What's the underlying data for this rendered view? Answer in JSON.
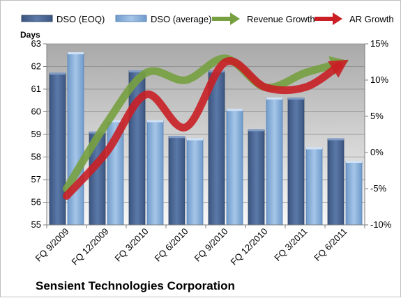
{
  "chart_data": {
    "type": "bar",
    "title": "Sensient Technologies Corporation",
    "ylabel": "Days",
    "categories": [
      "FQ 9/2009",
      "FQ 12/2009",
      "FQ 3/2010",
      "FQ 6/2010",
      "FQ 9/2010",
      "FQ 12/2010",
      "FQ 3/2011",
      "FQ 6/2011"
    ],
    "ylim": [
      55,
      63
    ],
    "yticks": [
      "55",
      "56",
      "57",
      "58",
      "59",
      "60",
      "61",
      "62",
      "63"
    ],
    "y2lim": [
      -10,
      15
    ],
    "y2ticks": [
      "-10%",
      "-5%",
      "0%",
      "5%",
      "10%",
      "15%"
    ],
    "series": [
      {
        "name": "DSO (EOQ)",
        "kind": "bar",
        "axis": "left",
        "color": "#4a6591",
        "values": [
          61.7,
          59.1,
          61.8,
          58.9,
          61.8,
          59.2,
          60.6,
          58.8
        ]
      },
      {
        "name": "DSO (average)",
        "kind": "bar",
        "axis": "left",
        "color": "#8cb2dc",
        "values": [
          62.6,
          59.6,
          59.6,
          58.8,
          60.1,
          60.6,
          58.4,
          57.8
        ]
      },
      {
        "name": "Revenue Growth",
        "kind": "line",
        "axis": "right",
        "color": "#77a040",
        "values": [
          -5,
          4,
          11,
          10,
          13,
          9,
          11,
          12.5
        ]
      },
      {
        "name": "AR Growth",
        "kind": "line",
        "axis": "right",
        "color": "#c91f25",
        "values": [
          -6,
          0,
          8,
          3.5,
          12.5,
          9,
          9,
          12.5
        ]
      }
    ],
    "legend_position": "top",
    "grid": true,
    "plot_background": "gradient-gray"
  }
}
